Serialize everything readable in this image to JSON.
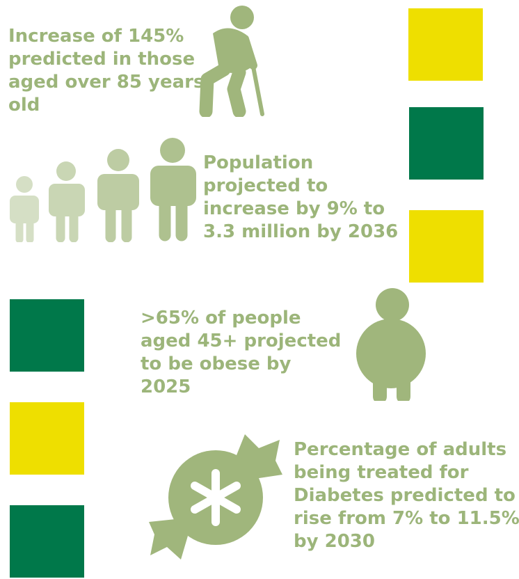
{
  "colors": {
    "green_text": "#9CB57A",
    "icon_green": "#A0B67C",
    "pale_green": "#D5DFC5",
    "light_green": "#BDCCA3",
    "mid_green": "#AEC18F",
    "yellow": "#EEDF00",
    "dark_green": "#00784A",
    "white": "#FFFFFF"
  },
  "stats": {
    "elderly": {
      "lines": [
        "Increase of 145%",
        "predicted in those",
        "aged over 85 years",
        "old"
      ],
      "icon": "elderly-person-with-cane-icon"
    },
    "population": {
      "lines": [
        "Population",
        "projected to",
        "increase by 9% to",
        "3.3 million by 2036"
      ],
      "icon": "population-growth-people-icon"
    },
    "obesity": {
      "lines": [
        ">65% of people",
        "aged 45+ projected",
        "to be obese by",
        "2025"
      ],
      "icon": "obese-person-icon"
    },
    "diabetes": {
      "lines": [
        "Percentage of adults",
        "being treated for",
        "Diabetes predicted to",
        "rise from 7% to 11.5%",
        "by 2030"
      ],
      "icon": "sweet-candy-icon"
    }
  }
}
